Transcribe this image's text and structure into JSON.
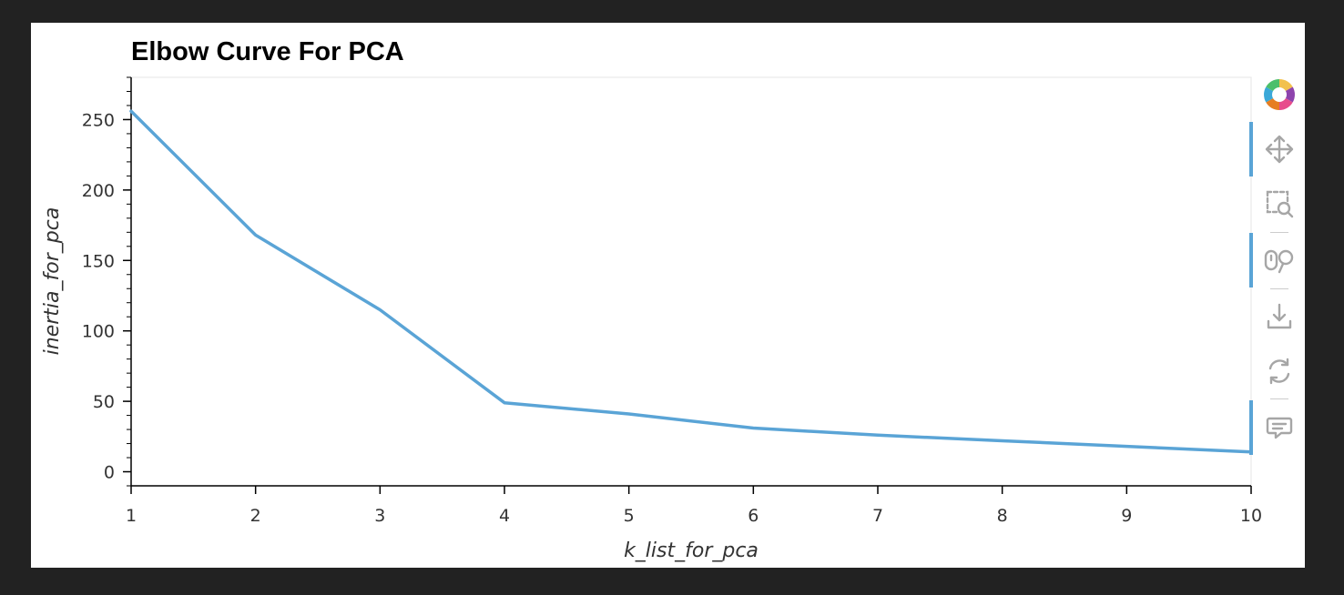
{
  "chart_data": {
    "type": "line",
    "title": "Elbow Curve For PCA",
    "xlabel": "k_list_for_pca",
    "ylabel": "inertia_for_pca",
    "x": [
      1,
      2,
      3,
      4,
      5,
      6,
      7,
      8,
      9,
      10
    ],
    "series": [
      {
        "values": [
          256,
          168,
          115,
          49,
          41,
          31,
          26,
          22,
          18,
          14
        ],
        "color": "#5aa4d6"
      }
    ],
    "xlim": [
      1,
      10
    ],
    "ylim": [
      -10,
      280
    ],
    "xticks": [
      1,
      2,
      3,
      4,
      5,
      6,
      7,
      8,
      9,
      10
    ],
    "yticks": [
      0,
      50,
      100,
      150,
      200,
      250
    ],
    "grid": false,
    "legend": "none"
  },
  "toolbar": {
    "items": [
      {
        "icon": "bokeh-logo-icon",
        "active": false
      },
      {
        "icon": "pan-icon",
        "active": true
      },
      {
        "icon": "box-zoom-icon",
        "active": false
      },
      {
        "icon": "wheel-zoom-icon",
        "active": true
      },
      {
        "icon": "save-icon",
        "active": false
      },
      {
        "icon": "reset-icon",
        "active": false
      },
      {
        "icon": "hover-icon",
        "active": true
      }
    ]
  }
}
